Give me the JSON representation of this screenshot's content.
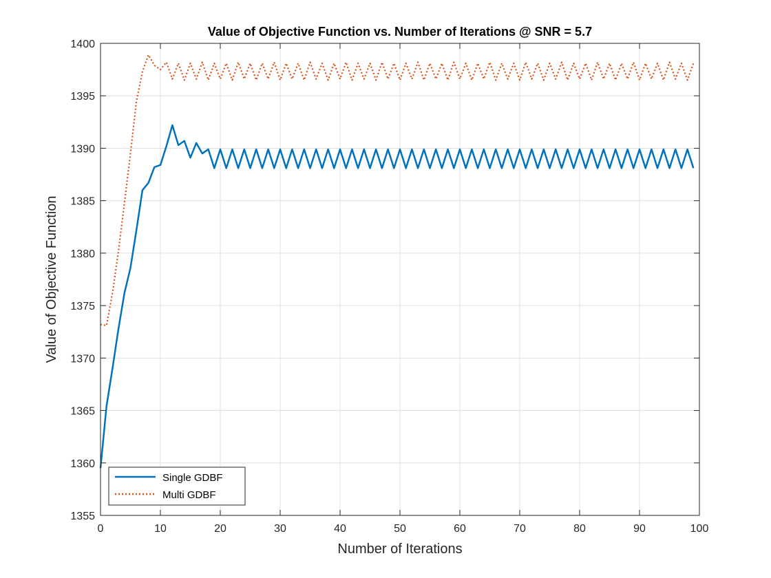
{
  "chart_data": {
    "type": "line",
    "title": "Value of Objective Function vs. Number of Iterations @ SNR = 5.7",
    "xlabel": "Number of Iterations",
    "ylabel": "Value of Objective Function",
    "xlim": [
      0,
      100
    ],
    "ylim": [
      1355,
      1400
    ],
    "xticks": [
      0,
      10,
      20,
      30,
      40,
      50,
      60,
      70,
      80,
      90,
      100
    ],
    "yticks": [
      1355,
      1360,
      1365,
      1370,
      1375,
      1380,
      1385,
      1390,
      1395,
      1400
    ],
    "grid": true,
    "legend_location": "bottom-left",
    "series": [
      {
        "name": "Single GDBF",
        "color": "#0072BD",
        "line_style": "solid",
        "x": [
          0,
          1,
          2,
          3,
          4,
          5,
          6,
          7,
          8,
          9,
          10,
          11,
          12,
          13,
          14,
          15,
          16,
          17,
          18,
          19,
          20,
          21,
          22,
          23,
          24,
          25,
          26,
          27,
          28,
          29,
          30,
          31,
          32,
          33,
          34,
          35,
          36,
          37,
          38,
          39,
          40,
          41,
          42,
          43,
          44,
          45,
          46,
          47,
          48,
          49,
          50,
          51,
          52,
          53,
          54,
          55,
          56,
          57,
          58,
          59,
          60,
          61,
          62,
          63,
          64,
          65,
          66,
          67,
          68,
          69,
          70,
          71,
          72,
          73,
          74,
          75,
          76,
          77,
          78,
          79,
          80,
          81,
          82,
          83,
          84,
          85,
          86,
          87,
          88,
          89,
          90,
          91,
          92,
          93,
          94,
          95,
          96,
          97,
          98,
          99
        ],
        "y": [
          1359.5,
          1365.4,
          1369,
          1372.8,
          1376.2,
          1378.6,
          1382.2,
          1386,
          1386.7,
          1388.2,
          1388.4,
          1390.2,
          1392.2,
          1390.3,
          1390.7,
          1389.1,
          1390.5,
          1389.5,
          1389.9,
          1388.1,
          1389.9,
          1388.1,
          1389.9,
          1388.1,
          1389.9,
          1388.1,
          1389.9,
          1388.1,
          1389.9,
          1388.1,
          1389.9,
          1388.1,
          1389.9,
          1388.1,
          1389.9,
          1388.1,
          1389.9,
          1388.1,
          1389.9,
          1388.1,
          1389.9,
          1388.1,
          1389.9,
          1388.1,
          1389.9,
          1388.1,
          1389.9,
          1388.1,
          1389.9,
          1388.1,
          1389.9,
          1388.1,
          1389.9,
          1388.1,
          1389.9,
          1388.1,
          1389.9,
          1388.1,
          1389.9,
          1388.1,
          1389.9,
          1388.1,
          1389.9,
          1388.1,
          1389.9,
          1388.1,
          1389.9,
          1388.1,
          1389.9,
          1388.1,
          1389.9,
          1388.1,
          1389.9,
          1388.1,
          1389.9,
          1388.1,
          1389.9,
          1388.1,
          1389.9,
          1388.1,
          1389.9,
          1388.1,
          1389.9,
          1388.1,
          1389.9,
          1388.1,
          1389.9,
          1388.1,
          1389.9,
          1388.1,
          1389.9,
          1388.1,
          1389.9,
          1388.1,
          1389.9,
          1388.1,
          1389.9,
          1388.1,
          1389.9,
          1388.1
        ]
      },
      {
        "name": "Multi GDBF",
        "color": "#D95319",
        "line_style": "dotted",
        "x": [
          0,
          1,
          2,
          3,
          4,
          5,
          6,
          7,
          8,
          9,
          10,
          11,
          12,
          13,
          14,
          15,
          16,
          17,
          18,
          19,
          20,
          21,
          22,
          23,
          24,
          25,
          26,
          27,
          28,
          29,
          30,
          31,
          32,
          33,
          34,
          35,
          36,
          37,
          38,
          39,
          40,
          41,
          42,
          43,
          44,
          45,
          46,
          47,
          48,
          49,
          50,
          51,
          52,
          53,
          54,
          55,
          56,
          57,
          58,
          59,
          60,
          61,
          62,
          63,
          64,
          65,
          66,
          67,
          68,
          69,
          70,
          71,
          72,
          73,
          74,
          75,
          76,
          77,
          78,
          79,
          80,
          81,
          82,
          83,
          84,
          85,
          86,
          87,
          88,
          89,
          90,
          91,
          92,
          93,
          94,
          95,
          96,
          97,
          98,
          99
        ],
        "y": [
          1373.2,
          1373.1,
          1376.2,
          1380.2,
          1384.8,
          1389.5,
          1394.5,
          1397.3,
          1398.9,
          1397.9,
          1397.5,
          1398.2,
          1396.6,
          1398.1,
          1396.5,
          1398.1,
          1396.6,
          1398.2,
          1396.5,
          1398.1,
          1396.6,
          1398.1,
          1396.5,
          1398.2,
          1396.6,
          1398.1,
          1396.5,
          1398.1,
          1396.6,
          1398.2,
          1396.5,
          1398.1,
          1396.6,
          1398.1,
          1396.5,
          1398.2,
          1396.6,
          1398.1,
          1396.5,
          1398.1,
          1396.6,
          1398.2,
          1396.5,
          1398.1,
          1396.6,
          1398.1,
          1396.5,
          1398.2,
          1396.6,
          1398.1,
          1396.5,
          1398.1,
          1396.6,
          1398.2,
          1396.5,
          1398.1,
          1396.6,
          1398.1,
          1396.5,
          1398.2,
          1396.6,
          1398.1,
          1396.5,
          1398.1,
          1396.6,
          1398.2,
          1396.5,
          1398.1,
          1396.6,
          1398.1,
          1396.5,
          1398.2,
          1396.6,
          1398.1,
          1396.5,
          1398.1,
          1396.6,
          1398.2,
          1396.5,
          1398.1,
          1396.6,
          1398.1,
          1396.5,
          1398.2,
          1396.6,
          1398.1,
          1396.5,
          1398.1,
          1396.6,
          1398.2,
          1396.5,
          1398.1,
          1396.6,
          1398.1,
          1396.5,
          1398.2,
          1396.6,
          1398.1,
          1396.5,
          1398.1
        ]
      }
    ]
  }
}
